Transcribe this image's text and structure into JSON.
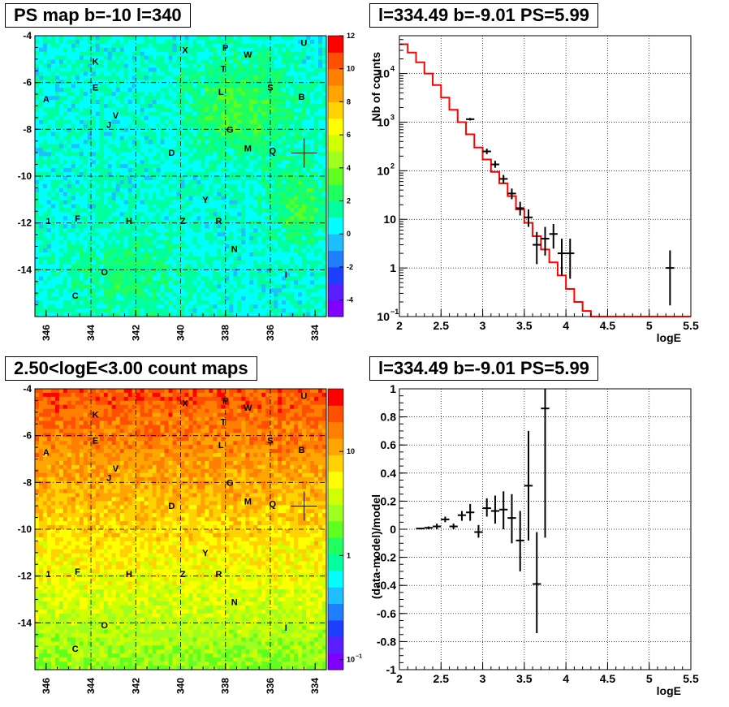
{
  "titles": {
    "ps_map": "PS map b=-10 l=340",
    "spectrum": "l=334.49 b=-9.01 PS=5.99",
    "count_map": "2.50<logE<3.00 count maps",
    "residual": "l=334.49 b=-9.01 PS=5.99"
  },
  "colors": {
    "model_line": "#ff0000",
    "data_points": "#000000",
    "grid": "#000000"
  },
  "chart_data": [
    {
      "type": "heatmap",
      "title": "PS map b=-10 l=340",
      "xlim": [
        346.5,
        333.5
      ],
      "ylim": [
        -16,
        -4
      ],
      "x_ticks": [
        "346",
        "344",
        "342",
        "340",
        "338",
        "336",
        "334"
      ],
      "y_ticks": [
        "-4",
        "-6",
        "-8",
        "-10",
        "-12",
        "-14"
      ],
      "colorbar": {
        "min": -5,
        "max": 12,
        "ticks": [
          "12",
          "10",
          "8",
          "6",
          "4",
          "2",
          "0",
          "-2",
          "-4"
        ]
      },
      "grid": true,
      "source_labels": [
        {
          "t": "U",
          "l": 334.5,
          "b": -4.3
        },
        {
          "t": "X",
          "l": 339.8,
          "b": -4.6
        },
        {
          "t": "P",
          "l": 338.0,
          "b": -4.5
        },
        {
          "t": "W",
          "l": 337.0,
          "b": -4.8
        },
        {
          "t": "K",
          "l": 343.8,
          "b": -5.1
        },
        {
          "t": "T",
          "l": 338.1,
          "b": -5.4
        },
        {
          "t": "E",
          "l": 343.8,
          "b": -6.2
        },
        {
          "t": "S",
          "l": 336.0,
          "b": -6.2
        },
        {
          "t": "L",
          "l": 338.2,
          "b": -6.4
        },
        {
          "t": "B",
          "l": 334.6,
          "b": -6.6
        },
        {
          "t": "A",
          "l": 346.0,
          "b": -6.7
        },
        {
          "t": "V",
          "l": 342.9,
          "b": -7.4
        },
        {
          "t": "J",
          "l": 343.2,
          "b": -7.8
        },
        {
          "t": "G",
          "l": 337.8,
          "b": -8.0
        },
        {
          "t": "M",
          "l": 337.0,
          "b": -8.8
        },
        {
          "t": "Q",
          "l": 335.9,
          "b": -8.9
        },
        {
          "t": "D",
          "l": 340.4,
          "b": -9.0
        },
        {
          "t": "Y",
          "l": 338.9,
          "b": -11.0
        },
        {
          "t": "1",
          "l": 345.9,
          "b": -11.9
        },
        {
          "t": "F",
          "l": 344.6,
          "b": -11.8
        },
        {
          "t": "H",
          "l": 342.3,
          "b": -11.9
        },
        {
          "t": "Z",
          "l": 339.9,
          "b": -11.9
        },
        {
          "t": "R",
          "l": 338.3,
          "b": -11.9
        },
        {
          "t": "N",
          "l": 337.6,
          "b": -13.1
        },
        {
          "t": "O",
          "l": 343.4,
          "b": -14.1
        },
        {
          "t": "I",
          "l": 335.3,
          "b": -14.2
        },
        {
          "t": "C",
          "l": 344.7,
          "b": -15.1
        }
      ],
      "marker": {
        "l": 334.49,
        "b": -9.01
      }
    },
    {
      "type": "line",
      "title": "l=334.49 b=-9.01 PS=5.99",
      "xlabel": "logE",
      "ylabel": "Nb of counts",
      "xlim": [
        2,
        5.5
      ],
      "ylim": [
        0.1,
        60000
      ],
      "yscale": "log",
      "grid": true,
      "x_ticks": [
        "2",
        "2.5",
        "3",
        "3.5",
        "4",
        "4.5",
        "5",
        "5.5"
      ],
      "y_ticks": [
        {
          "base": "10",
          "exp": "4",
          "v": 10000
        },
        {
          "base": "10",
          "exp": "3",
          "v": 1000
        },
        {
          "base": "10",
          "exp": "2",
          "v": 100
        },
        {
          "base": "10",
          "exp": "",
          "v": 10
        },
        {
          "base": "1",
          "exp": "",
          "v": 1
        },
        {
          "base": "10",
          "exp": "−1",
          "v": 0.1
        }
      ],
      "model_edges": [
        2.0,
        2.1,
        2.2,
        2.3,
        2.4,
        2.5,
        2.6,
        2.7,
        2.8,
        2.9,
        3.0,
        3.1,
        3.2,
        3.3,
        3.4,
        3.5,
        3.6,
        3.7,
        3.8,
        3.9,
        4.0,
        4.1,
        4.2,
        4.3,
        5.5
      ],
      "model_values": [
        40000,
        27000,
        17000,
        10000,
        5800,
        3200,
        1800,
        1000,
        560,
        300,
        170,
        95,
        55,
        30,
        16,
        8.5,
        4.5,
        2.4,
        1.3,
        0.7,
        0.37,
        0.2,
        0.13,
        0.1
      ],
      "data_points": [
        {
          "x": 2.85,
          "y": 1150,
          "lo": 1080,
          "hi": 1220
        },
        {
          "x": 3.05,
          "y": 250,
          "lo": 220,
          "hi": 285
        },
        {
          "x": 3.15,
          "y": 135,
          "lo": 115,
          "hi": 160
        },
        {
          "x": 3.25,
          "y": 68,
          "lo": 55,
          "hi": 82
        },
        {
          "x": 3.35,
          "y": 34,
          "lo": 26,
          "hi": 43
        },
        {
          "x": 3.45,
          "y": 17,
          "lo": 12,
          "hi": 23
        },
        {
          "x": 3.55,
          "y": 11,
          "lo": 7,
          "hi": 16
        },
        {
          "x": 3.65,
          "y": 3,
          "lo": 1.2,
          "hi": 5.5
        },
        {
          "x": 3.75,
          "y": 4,
          "lo": 1.8,
          "hi": 7
        },
        {
          "x": 3.85,
          "y": 5,
          "lo": 2.5,
          "hi": 8
        },
        {
          "x": 3.95,
          "y": 2,
          "lo": 0.7,
          "hi": 4
        },
        {
          "x": 4.05,
          "y": 2,
          "lo": 0.6,
          "hi": 4
        },
        {
          "x": 5.25,
          "y": 1,
          "lo": 0.17,
          "hi": 2.3
        }
      ]
    },
    {
      "type": "heatmap",
      "title": "2.50<logE<3.00 count maps",
      "xlim": [
        346.5,
        333.5
      ],
      "ylim": [
        -16,
        -4
      ],
      "x_ticks": [
        "346",
        "344",
        "342",
        "340",
        "338",
        "336",
        "334"
      ],
      "y_ticks": [
        "-4",
        "-6",
        "-8",
        "-10",
        "-12",
        "-14"
      ],
      "colorbar": {
        "scale": "log",
        "min": 0.08,
        "max": 40,
        "ticks": [
          {
            "base": "10",
            "exp": "",
            "v": 10
          },
          {
            "base": "1",
            "exp": "",
            "v": 1
          },
          {
            "base": "10",
            "exp": "−1",
            "v": 0.1
          }
        ]
      },
      "grid": true,
      "source_labels": "same as PS map",
      "marker": {
        "l": 334.49,
        "b": -9.01
      }
    },
    {
      "type": "scatter",
      "title": "l=334.49 b=-9.01 PS=5.99",
      "xlabel": "logE",
      "ylabel": "(data-model)/model",
      "xlim": [
        2,
        5.5
      ],
      "ylim": [
        -1,
        1
      ],
      "grid": true,
      "x_ticks": [
        "2",
        "2.5",
        "3",
        "3.5",
        "4",
        "4.5",
        "5",
        "5.5"
      ],
      "y_ticks": [
        "1",
        "0.8",
        "0.6",
        "0.4",
        "0.2",
        "0",
        "-0.2",
        "-0.4",
        "-0.6",
        "-0.8",
        "-1"
      ],
      "points": [
        {
          "x": 2.25,
          "y": 0.005,
          "lo": 0.0,
          "hi": 0.01
        },
        {
          "x": 2.35,
          "y": 0.01,
          "lo": 0.0,
          "hi": 0.02
        },
        {
          "x": 2.45,
          "y": 0.02,
          "lo": 0.0,
          "hi": 0.04
        },
        {
          "x": 2.55,
          "y": 0.07,
          "lo": 0.05,
          "hi": 0.09
        },
        {
          "x": 2.65,
          "y": 0.02,
          "lo": 0.0,
          "hi": 0.04
        },
        {
          "x": 2.75,
          "y": 0.1,
          "lo": 0.06,
          "hi": 0.13
        },
        {
          "x": 2.85,
          "y": 0.12,
          "lo": 0.06,
          "hi": 0.18
        },
        {
          "x": 2.95,
          "y": -0.02,
          "lo": -0.06,
          "hi": 0.03
        },
        {
          "x": 3.05,
          "y": 0.15,
          "lo": 0.09,
          "hi": 0.22
        },
        {
          "x": 3.15,
          "y": 0.13,
          "lo": 0.04,
          "hi": 0.24
        },
        {
          "x": 3.25,
          "y": 0.14,
          "lo": 0.0,
          "hi": 0.27
        },
        {
          "x": 3.35,
          "y": 0.08,
          "lo": -0.1,
          "hi": 0.25
        },
        {
          "x": 3.45,
          "y": -0.08,
          "lo": -0.3,
          "hi": 0.13
        },
        {
          "x": 3.55,
          "y": 0.31,
          "lo": -0.08,
          "hi": 0.7
        },
        {
          "x": 3.65,
          "y": -0.39,
          "lo": -0.74,
          "hi": -0.02
        },
        {
          "x": 3.75,
          "y": 0.86,
          "lo": -0.06,
          "hi": 1.0
        }
      ]
    }
  ]
}
